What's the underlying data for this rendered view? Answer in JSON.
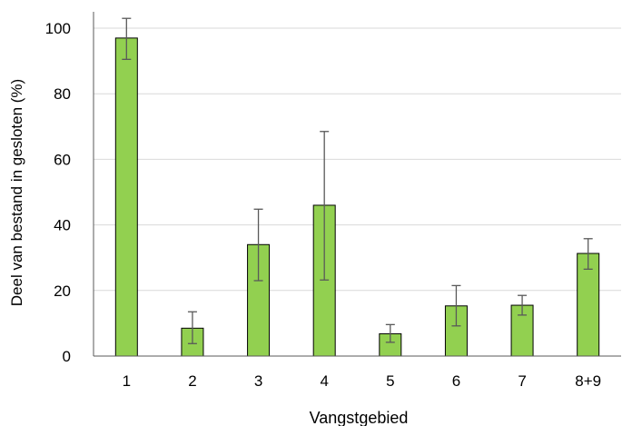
{
  "chart_data": {
    "type": "bar",
    "title": "",
    "xlabel": "Vangstgebied",
    "ylabel": "Deel  van bestand in gesloten (%)",
    "categories": [
      "1",
      "2",
      "3",
      "4",
      "5",
      "6",
      "7",
      "8+9"
    ],
    "values": [
      97,
      8.5,
      34,
      46,
      6.8,
      15.3,
      15.5,
      31.3
    ],
    "error_low": [
      90.5,
      3.8,
      23,
      23.2,
      4.2,
      9.2,
      12.5,
      26.5
    ],
    "error_high": [
      103,
      13.5,
      44.8,
      68.5,
      9.6,
      21.5,
      18.5,
      35.8
    ],
    "ylim": [
      0,
      100
    ],
    "yticks": [
      0,
      20,
      40,
      60,
      80,
      100
    ],
    "grid": true,
    "bar_color": "#92d050",
    "bar_edge_color": "#000000",
    "errorbar_color": "#595959",
    "grid_color": "#d9d9d9"
  }
}
